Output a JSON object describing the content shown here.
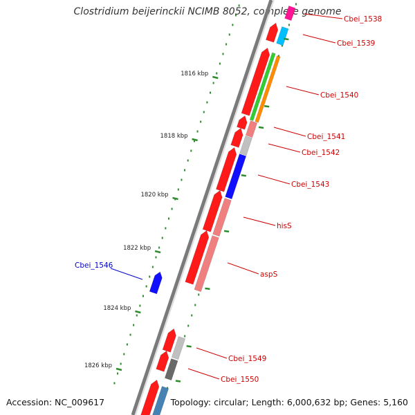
{
  "map": {
    "title": "Clostridium beijerinckii NCIMB 8052, complete genome",
    "accession": "Accession: NC_009617",
    "summary": "Topology: circular; Length: 6,000,632 bp; Genes: 5,160"
  },
  "colors": {
    "backbone": "#7a7a7a",
    "tick": "#2e8b2e",
    "gene_label": "#cc0000",
    "gene_label_reverse": "#0000cc"
  },
  "ticks": [
    {
      "kbp": 1816,
      "label": "1816 kbp"
    },
    {
      "kbp": 1818,
      "label": "1818 kbp"
    },
    {
      "kbp": 1820,
      "label": "1820 kbp"
    },
    {
      "kbp": 1822,
      "label": "1822 kbp"
    },
    {
      "kbp": 1824,
      "label": "1824 kbp"
    },
    {
      "kbp": 1826,
      "label": "1826 kbp"
    }
  ],
  "genes": [
    {
      "label": "Cbei_1538",
      "color": "#ff1a1a"
    },
    {
      "label": "Cbei_1539",
      "color": "#00bfff"
    },
    {
      "label": "Cbei_1540",
      "color": "#ff8c00"
    },
    {
      "label": "Cbei_1541",
      "color": "#f08080"
    },
    {
      "label": "Cbei_1542",
      "color": "#c0c0c0"
    },
    {
      "label": "Cbei_1543",
      "color": "#1010ff"
    },
    {
      "label": "hisS",
      "color": "#f08080"
    },
    {
      "label": "aspS",
      "color": "#f08080"
    },
    {
      "label": "Cbei_1546",
      "color": "#1010ff"
    },
    {
      "label": "Cbei_1549",
      "color": "#c0c0c0"
    },
    {
      "label": "Cbei_1550",
      "color": "#696969"
    }
  ]
}
